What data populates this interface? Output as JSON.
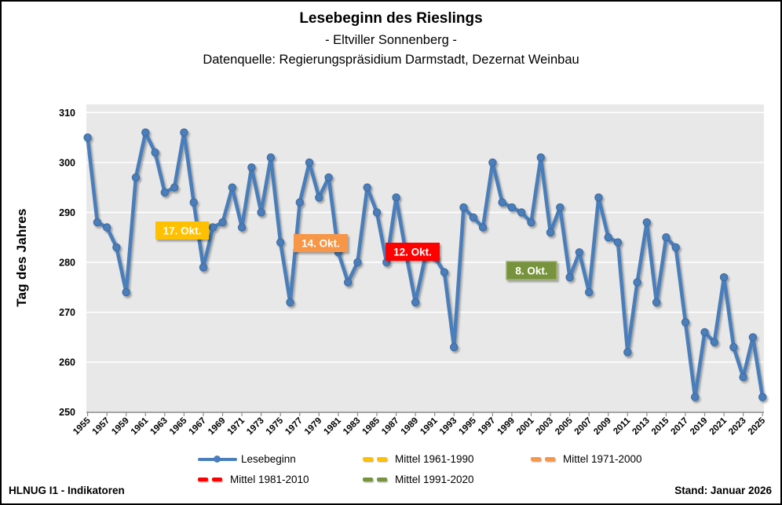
{
  "title": {
    "main": "Lesebeginn des Rieslings",
    "sub": "- Eltviller Sonnenberg -",
    "source": "Datenquelle: Regierungspräsidium Darmstadt, Dezernat Weinbau"
  },
  "chart_data": {
    "type": "line",
    "title": "Lesebeginn des Rieslings - Eltviller Sonnenberg",
    "xlabel": "",
    "ylabel": "Tag des Jahres",
    "ylim": [
      250,
      310
    ],
    "grid": true,
    "legend_position": "bottom",
    "plot_bg": "#e8e8e8",
    "y_ticks": [
      250,
      260,
      270,
      280,
      290,
      300,
      310
    ],
    "x_ticks": [
      1955,
      1957,
      1959,
      1961,
      1963,
      1965,
      1967,
      1969,
      1971,
      1973,
      1975,
      1977,
      1979,
      1981,
      1983,
      1985,
      1987,
      1989,
      1991,
      1993,
      1995,
      1997,
      1999,
      2001,
      2003,
      2005,
      2007,
      2009,
      2011,
      2013,
      2015,
      2017,
      2019,
      2021,
      2023,
      2025
    ],
    "series": [
      {
        "name": "Lesebeginn",
        "color": "#4a7ebb",
        "x": [
          1955,
          1956,
          1957,
          1958,
          1959,
          1960,
          1961,
          1962,
          1963,
          1964,
          1965,
          1966,
          1967,
          1968,
          1969,
          1970,
          1971,
          1972,
          1973,
          1974,
          1975,
          1976,
          1977,
          1978,
          1979,
          1980,
          1981,
          1982,
          1983,
          1984,
          1985,
          1986,
          1987,
          1988,
          1989,
          1990,
          1991,
          1992,
          1993,
          1994,
          1995,
          1996,
          1997,
          1998,
          1999,
          2000,
          2001,
          2002,
          2003,
          2004,
          2005,
          2006,
          2007,
          2008,
          2009,
          2010,
          2011,
          2012,
          2013,
          2014,
          2015,
          2016,
          2017,
          2018,
          2019,
          2020,
          2021,
          2022,
          2023,
          2024,
          2025
        ],
        "values": [
          305,
          288,
          287,
          283,
          274,
          297,
          306,
          302,
          294,
          295,
          306,
          292,
          279,
          287,
          288,
          295,
          287,
          299,
          290,
          301,
          284,
          272,
          292,
          300,
          293,
          297,
          282,
          276,
          280,
          295,
          290,
          280,
          293,
          282,
          272,
          281,
          281,
          278,
          263,
          291,
          289,
          287,
          300,
          292,
          291,
          290,
          288,
          301,
          286,
          291,
          277,
          282,
          274,
          293,
          285,
          284,
          262,
          276,
          288,
          272,
          285,
          283,
          268,
          253,
          266,
          264,
          277,
          263,
          257,
          265,
          253
        ]
      }
    ],
    "mean_lines": [
      {
        "name": "Mittel 1961-1990",
        "label": "17. Okt.",
        "start_year": 1961,
        "end_year": 1990,
        "value": 290,
        "color": "#ffc000"
      },
      {
        "name": "Mittel 1971-2000",
        "label": "14. Okt.",
        "start_year": 1971,
        "end_year": 2000,
        "value": 287,
        "color": "#f79646"
      },
      {
        "name": "Mittel 1981-2010",
        "label": "12. Okt.",
        "start_year": 1981,
        "end_year": 2010,
        "value": 285,
        "color": "#ff0000"
      },
      {
        "name": "Mittel 1991-2020",
        "label": "8. Okt.",
        "start_year": 1991,
        "end_year": 2020,
        "value": 281.5,
        "color": "#77933c"
      }
    ]
  },
  "legend": {
    "items": [
      {
        "label": "Lesebeginn",
        "type": "line-marker",
        "color": "#4a7ebb"
      },
      {
        "label": "Mittel 1961-1990",
        "type": "dashes",
        "color": "#ffc000"
      },
      {
        "label": "Mittel 1971-2000",
        "type": "dashes",
        "color": "#f79646"
      },
      {
        "label": "Mittel 1981-2010",
        "type": "dashes",
        "color": "#ff0000"
      },
      {
        "label": "Mittel 1991-2020",
        "type": "dashes",
        "color": "#77933c"
      }
    ]
  },
  "footer": {
    "left": "HLNUG I1 - Indikatoren",
    "right": "Stand: Januar 2026"
  }
}
